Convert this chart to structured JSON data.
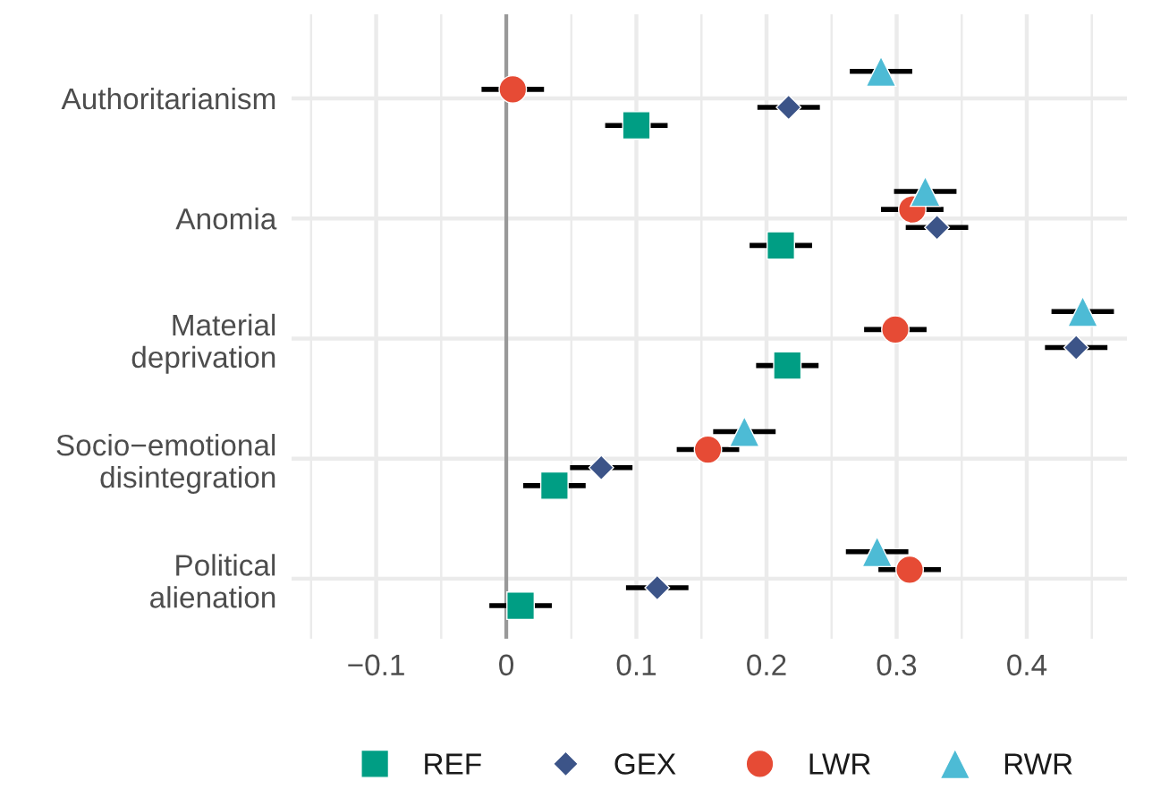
{
  "chart_data": {
    "type": "scatter",
    "orientation": "horizontal",
    "categories": [
      "Authoritarianism",
      "Anomia",
      "Material\ndeprivation",
      "Socio−emotional\ndisintegration",
      "Political\nalienation"
    ],
    "series": [
      {
        "name": "REF",
        "color": "#009e84",
        "marker": "square",
        "values": [
          0.1,
          0.211,
          0.216,
          0.037,
          0.011
        ],
        "errors": [
          0.024,
          0.024,
          0.024,
          0.024,
          0.024
        ]
      },
      {
        "name": "GEX",
        "color": "#3c5488",
        "marker": "diamond",
        "values": [
          0.217,
          0.331,
          0.438,
          0.073,
          0.116
        ],
        "errors": [
          0.024,
          0.024,
          0.024,
          0.024,
          0.024
        ]
      },
      {
        "name": "LWR",
        "color": "#e64b35",
        "marker": "circle",
        "values": [
          0.005,
          0.312,
          0.299,
          0.155,
          0.31
        ],
        "errors": [
          0.024,
          0.024,
          0.024,
          0.024,
          0.024
        ]
      },
      {
        "name": "RWR",
        "color": "#4dbbd5",
        "marker": "triangle",
        "values": [
          0.288,
          0.322,
          0.443,
          0.183,
          0.285
        ],
        "errors": [
          0.024,
          0.024,
          0.024,
          0.024,
          0.024
        ]
      }
    ],
    "xlim": [
      -0.165,
      0.477
    ],
    "xticks": [
      {
        "value": -0.15,
        "label": null
      },
      -0.1,
      {
        "value": -0.05,
        "label": null
      },
      0,
      {
        "value": 0.05,
        "label": null
      },
      0.1,
      {
        "value": 0.15,
        "label": null
      },
      0.2,
      {
        "value": 0.25,
        "label": null
      },
      0.3,
      {
        "value": 0.35,
        "label": null
      },
      0.4,
      {
        "value": 0.45,
        "label": null
      }
    ],
    "ref_lines": [
      {
        "axis": "x",
        "value": 0,
        "color": "#999999"
      }
    ],
    "grid": true,
    "legend": "bottom"
  }
}
